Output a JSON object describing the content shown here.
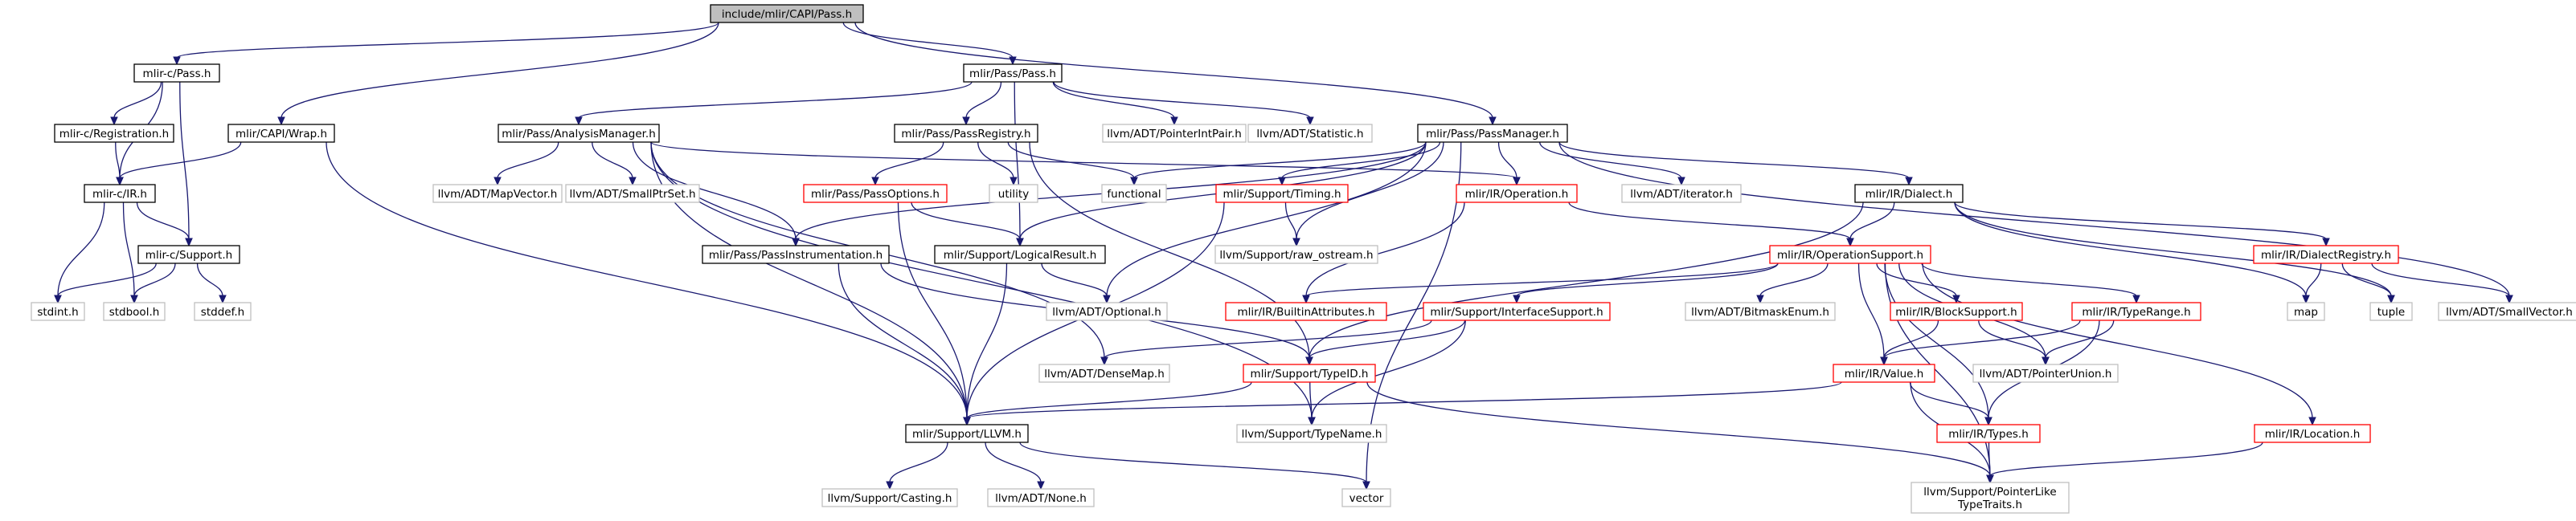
{
  "colors": {
    "edge": "#191970",
    "root_fill": "#bfbfbf",
    "root_border": "#000000",
    "normal_border": "#000000",
    "red_border": "#ff0000",
    "system_border": "#bfbfbf",
    "fill": "#ffffff"
  },
  "nodes": {
    "pass_capi": {
      "label": "include/mlir/CAPI/Pass.h",
      "style": "root"
    },
    "mlirc_pass": {
      "label": "mlir-c/Pass.h",
      "style": "normal"
    },
    "mlir_pass_pass": {
      "label": "mlir/Pass/Pass.h",
      "style": "normal"
    },
    "mlirc_registration": {
      "label": "mlir-c/Registration.h",
      "style": "normal"
    },
    "mlir_capi_wrap": {
      "label": "mlir/CAPI/Wrap.h",
      "style": "normal"
    },
    "mlir_pass_analysismanager": {
      "label": "mlir/Pass/AnalysisManager.h",
      "style": "normal"
    },
    "mlir_pass_passregistry": {
      "label": "mlir/Pass/PassRegistry.h",
      "style": "normal"
    },
    "llvm_pointerintpair": {
      "label": "llvm/ADT/PointerIntPair.h",
      "style": "system"
    },
    "llvm_statistic": {
      "label": "llvm/ADT/Statistic.h",
      "style": "system"
    },
    "mlir_pass_passmanager": {
      "label": "mlir/Pass/PassManager.h",
      "style": "normal"
    },
    "mlirc_ir": {
      "label": "mlir-c/IR.h",
      "style": "normal"
    },
    "llvm_mapvector": {
      "label": "llvm/ADT/MapVector.h",
      "style": "system"
    },
    "llvm_smallptrset": {
      "label": "llvm/ADT/SmallPtrSet.h",
      "style": "system"
    },
    "utility": {
      "label": "utility",
      "style": "system"
    },
    "functional": {
      "label": "functional",
      "style": "system"
    },
    "mlir_support_timing": {
      "label": "mlir/Support/Timing.h",
      "style": "red"
    },
    "mlir_ir_operation": {
      "label": "mlir/IR/Operation.h",
      "style": "red"
    },
    "llvm_iterator": {
      "label": "llvm/ADT/iterator.h",
      "style": "system"
    },
    "mlir_ir_dialect": {
      "label": "mlir/IR/Dialect.h",
      "style": "normal"
    },
    "mlir_pass_passoptions": {
      "label": "mlir/Pass/PassOptions.h",
      "style": "red"
    },
    "mlirc_support": {
      "label": "mlir-c/Support.h",
      "style": "normal"
    },
    "mlir_pass_passinstrumentation": {
      "label": "mlir/Pass/PassInstrumentation.h",
      "style": "normal"
    },
    "mlir_support_logicalresult": {
      "label": "mlir/Support/LogicalResult.h",
      "style": "normal"
    },
    "llvm_raw_ostream": {
      "label": "llvm/Support/raw_ostream.h",
      "style": "system"
    },
    "mlir_ir_operationsupport": {
      "label": "mlir/IR/OperationSupport.h",
      "style": "red"
    },
    "mlir_ir_dialectregistry": {
      "label": "mlir/IR/DialectRegistry.h",
      "style": "red"
    },
    "stdint": {
      "label": "stdint.h",
      "style": "system"
    },
    "stdbool": {
      "label": "stdbool.h",
      "style": "system"
    },
    "stddef": {
      "label": "stddef.h",
      "style": "system"
    },
    "llvm_optional": {
      "label": "llvm/ADT/Optional.h",
      "style": "system"
    },
    "mlir_ir_builtinattributes": {
      "label": "mlir/IR/BuiltinAttributes.h",
      "style": "red"
    },
    "mlir_support_interfacesupport": {
      "label": "mlir/Support/InterfaceSupport.h",
      "style": "red"
    },
    "llvm_bitmaskenum": {
      "label": "llvm/ADT/BitmaskEnum.h",
      "style": "system"
    },
    "mlir_ir_blocksupport": {
      "label": "mlir/IR/BlockSupport.h",
      "style": "red"
    },
    "mlir_ir_typerange": {
      "label": "mlir/IR/TypeRange.h",
      "style": "red"
    },
    "map": {
      "label": "map",
      "style": "system"
    },
    "tuple": {
      "label": "tuple",
      "style": "system"
    },
    "llvm_smallvector": {
      "label": "llvm/ADT/SmallVector.h",
      "style": "system"
    },
    "llvm_densemap": {
      "label": "llvm/ADT/DenseMap.h",
      "style": "system"
    },
    "mlir_support_typeid": {
      "label": "mlir/Support/TypeID.h",
      "style": "red"
    },
    "llvm_pointerunion": {
      "label": "llvm/ADT/PointerUnion.h",
      "style": "system"
    },
    "mlir_ir_value": {
      "label": "mlir/IR/Value.h",
      "style": "red"
    },
    "mlir_support_llvm": {
      "label": "mlir/Support/LLVM.h",
      "style": "normal"
    },
    "llvm_typename": {
      "label": "llvm/Support/TypeName.h",
      "style": "system"
    },
    "mlir_ir_types": {
      "label": "mlir/IR/Types.h",
      "style": "red"
    },
    "mlir_ir_location": {
      "label": "mlir/IR/Location.h",
      "style": "red"
    },
    "llvm_casting": {
      "label": "llvm/Support/Casting.h",
      "style": "system"
    },
    "llvm_none": {
      "label": "llvm/ADT/None.h",
      "style": "system"
    },
    "vector": {
      "label": "vector",
      "style": "system"
    },
    "llvm_pointerliketypetraits": {
      "label": [
        "llvm/Support/PointerLike",
        "TypeTraits.h"
      ],
      "style": "system"
    }
  },
  "edges": [
    [
      "pass_capi",
      "mlirc_pass"
    ],
    [
      "pass_capi",
      "mlir_pass_pass"
    ],
    [
      "pass_capi",
      "mlir_capi_wrap"
    ],
    [
      "pass_capi",
      "mlir_pass_passmanager"
    ],
    [
      "mlirc_pass",
      "mlirc_registration"
    ],
    [
      "mlirc_pass",
      "mlirc_ir"
    ],
    [
      "mlirc_pass",
      "mlirc_support"
    ],
    [
      "mlirc_registration",
      "mlirc_ir"
    ],
    [
      "mlir_capi_wrap",
      "mlirc_ir"
    ],
    [
      "mlir_capi_wrap",
      "mlir_support_llvm"
    ],
    [
      "mlirc_ir",
      "mlirc_support"
    ],
    [
      "mlirc_ir",
      "stdint"
    ],
    [
      "mlirc_ir",
      "stdbool"
    ],
    [
      "mlirc_support",
      "stdint"
    ],
    [
      "mlirc_support",
      "stdbool"
    ],
    [
      "mlirc_support",
      "stddef"
    ],
    [
      "mlir_pass_pass",
      "mlir_pass_analysismanager"
    ],
    [
      "mlir_pass_pass",
      "mlir_pass_passregistry"
    ],
    [
      "mlir_pass_pass",
      "mlir_support_logicalresult"
    ],
    [
      "mlir_pass_pass",
      "llvm_pointerintpair"
    ],
    [
      "mlir_pass_pass",
      "llvm_statistic"
    ],
    [
      "mlir_pass_analysismanager",
      "llvm_mapvector"
    ],
    [
      "mlir_pass_analysismanager",
      "llvm_smallptrset"
    ],
    [
      "mlir_pass_analysismanager",
      "mlir_ir_operation"
    ],
    [
      "mlir_pass_analysismanager",
      "mlir_pass_passinstrumentation"
    ],
    [
      "mlir_pass_analysismanager",
      "llvm_densemap"
    ],
    [
      "mlir_pass_analysismanager",
      "llvm_typename"
    ],
    [
      "mlir_pass_analysismanager",
      "mlir_support_llvm"
    ],
    [
      "mlir_pass_passregistry",
      "mlir_pass_passoptions"
    ],
    [
      "mlir_pass_passregistry",
      "utility"
    ],
    [
      "mlir_pass_passregistry",
      "functional"
    ],
    [
      "mlir_pass_passregistry",
      "mlir_support_typeid"
    ],
    [
      "mlir_pass_passoptions",
      "mlir_support_logicalresult"
    ],
    [
      "mlir_pass_passoptions",
      "mlir_support_llvm"
    ],
    [
      "mlir_pass_passinstrumentation",
      "mlir_support_llvm"
    ],
    [
      "mlir_pass_passinstrumentation",
      "mlir_support_typeid"
    ],
    [
      "mlir_pass_passmanager",
      "mlir_pass_passinstrumentation"
    ],
    [
      "mlir_pass_passmanager",
      "functional"
    ],
    [
      "mlir_pass_passmanager",
      "mlir_support_logicalresult"
    ],
    [
      "mlir_pass_passmanager",
      "mlir_support_timing"
    ],
    [
      "mlir_pass_passmanager",
      "llvm_raw_ostream"
    ],
    [
      "mlir_pass_passmanager",
      "llvm_optional"
    ],
    [
      "mlir_pass_passmanager",
      "mlir_ir_operation"
    ],
    [
      "mlir_pass_passmanager",
      "llvm_iterator"
    ],
    [
      "mlir_pass_passmanager",
      "mlir_ir_dialect"
    ],
    [
      "mlir_pass_passmanager",
      "llvm_smallvector"
    ],
    [
      "mlir_pass_passmanager",
      "vector"
    ],
    [
      "mlir_support_timing",
      "llvm_raw_ostream"
    ],
    [
      "mlir_support_timing",
      "mlir_support_llvm"
    ],
    [
      "mlir_ir_operation",
      "mlir_ir_operationsupport"
    ],
    [
      "mlir_ir_operation",
      "mlir_ir_builtinattributes"
    ],
    [
      "mlir_support_logicalresult",
      "llvm_optional"
    ],
    [
      "mlir_support_logicalresult",
      "mlir_support_llvm"
    ],
    [
      "mlir_ir_dialect",
      "mlir_ir_operationsupport"
    ],
    [
      "mlir_ir_dialect",
      "mlir_ir_dialectregistry"
    ],
    [
      "mlir_ir_dialect",
      "mlir_support_typeid"
    ],
    [
      "mlir_ir_dialect",
      "map"
    ],
    [
      "mlir_ir_dialect",
      "tuple"
    ],
    [
      "mlir_ir_dialectregistry",
      "map"
    ],
    [
      "mlir_ir_dialectregistry",
      "tuple"
    ],
    [
      "mlir_ir_dialectregistry",
      "llvm_smallvector"
    ],
    [
      "mlir_ir_operationsupport",
      "mlir_ir_builtinattributes"
    ],
    [
      "mlir_ir_operationsupport",
      "mlir_support_interfacesupport"
    ],
    [
      "mlir_ir_operationsupport",
      "llvm_bitmaskenum"
    ],
    [
      "mlir_ir_operationsupport",
      "mlir_ir_blocksupport"
    ],
    [
      "mlir_ir_operationsupport",
      "mlir_ir_typerange"
    ],
    [
      "mlir_ir_operationsupport",
      "llvm_pointerunion"
    ],
    [
      "mlir_ir_operationsupport",
      "mlir_ir_value"
    ],
    [
      "mlir_ir_operationsupport",
      "mlir_ir_types"
    ],
    [
      "mlir_ir_operationsupport",
      "mlir_ir_location"
    ],
    [
      "mlir_ir_operationsupport",
      "llvm_pointerliketypetraits"
    ],
    [
      "mlir_support_interfacesupport",
      "llvm_densemap"
    ],
    [
      "mlir_support_interfacesupport",
      "mlir_support_typeid"
    ],
    [
      "mlir_support_interfacesupport",
      "llvm_typename"
    ],
    [
      "mlir_ir_blocksupport",
      "mlir_ir_value"
    ],
    [
      "mlir_ir_blocksupport",
      "llvm_pointerunion"
    ],
    [
      "mlir_ir_typerange",
      "mlir_ir_value"
    ],
    [
      "mlir_ir_typerange",
      "llvm_pointerunion"
    ],
    [
      "mlir_ir_typerange",
      "mlir_ir_types"
    ],
    [
      "mlir_ir_value",
      "mlir_support_llvm"
    ],
    [
      "mlir_ir_value",
      "mlir_ir_types"
    ],
    [
      "mlir_ir_value",
      "llvm_pointerliketypetraits"
    ],
    [
      "mlir_ir_types",
      "llvm_pointerliketypetraits"
    ],
    [
      "mlir_ir_location",
      "llvm_pointerliketypetraits"
    ],
    [
      "mlir_support_typeid",
      "mlir_support_llvm"
    ],
    [
      "mlir_support_typeid",
      "llvm_typename"
    ],
    [
      "mlir_support_typeid",
      "llvm_pointerliketypetraits"
    ],
    [
      "mlir_support_llvm",
      "llvm_casting"
    ],
    [
      "mlir_support_llvm",
      "llvm_none"
    ],
    [
      "mlir_support_llvm",
      "vector"
    ]
  ]
}
